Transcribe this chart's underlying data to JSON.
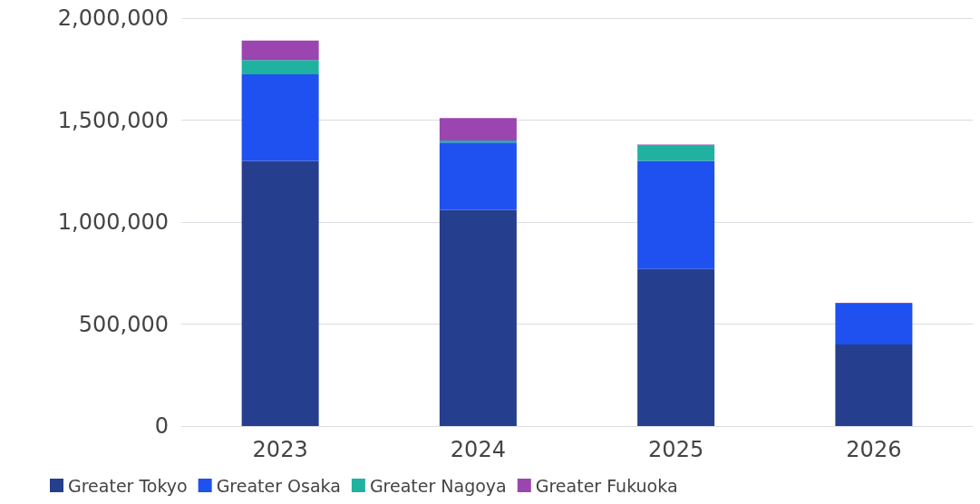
{
  "chart_data": {
    "type": "bar",
    "stacked": true,
    "categories": [
      "2023",
      "2024",
      "2025",
      "2026"
    ],
    "series": [
      {
        "name": "Greater Tokyo",
        "color": "#253f8e",
        "values": [
          1300000,
          1060000,
          770000,
          400000
        ]
      },
      {
        "name": "Greater Osaka",
        "color": "#1f50f0",
        "values": [
          425000,
          330000,
          530000,
          200000
        ]
      },
      {
        "name": "Greater Nagoya",
        "color": "#20b2a0",
        "values": [
          70000,
          10000,
          75000,
          0
        ]
      },
      {
        "name": "Greater Fukuoka",
        "color": "#9b45b0",
        "values": [
          95000,
          110000,
          5000,
          5000
        ]
      }
    ],
    "ylim": [
      0,
      2000000
    ],
    "yticks": [
      0,
      {
        "value": 500000,
        "label": "500,000"
      },
      {
        "value": 1000000,
        "label": "1,000,000"
      },
      {
        "value": 1500000,
        "label": "1,500,000"
      },
      {
        "value": 2000000,
        "label": "2,000,000"
      }
    ],
    "grid": "y",
    "legend": "bottom left"
  }
}
